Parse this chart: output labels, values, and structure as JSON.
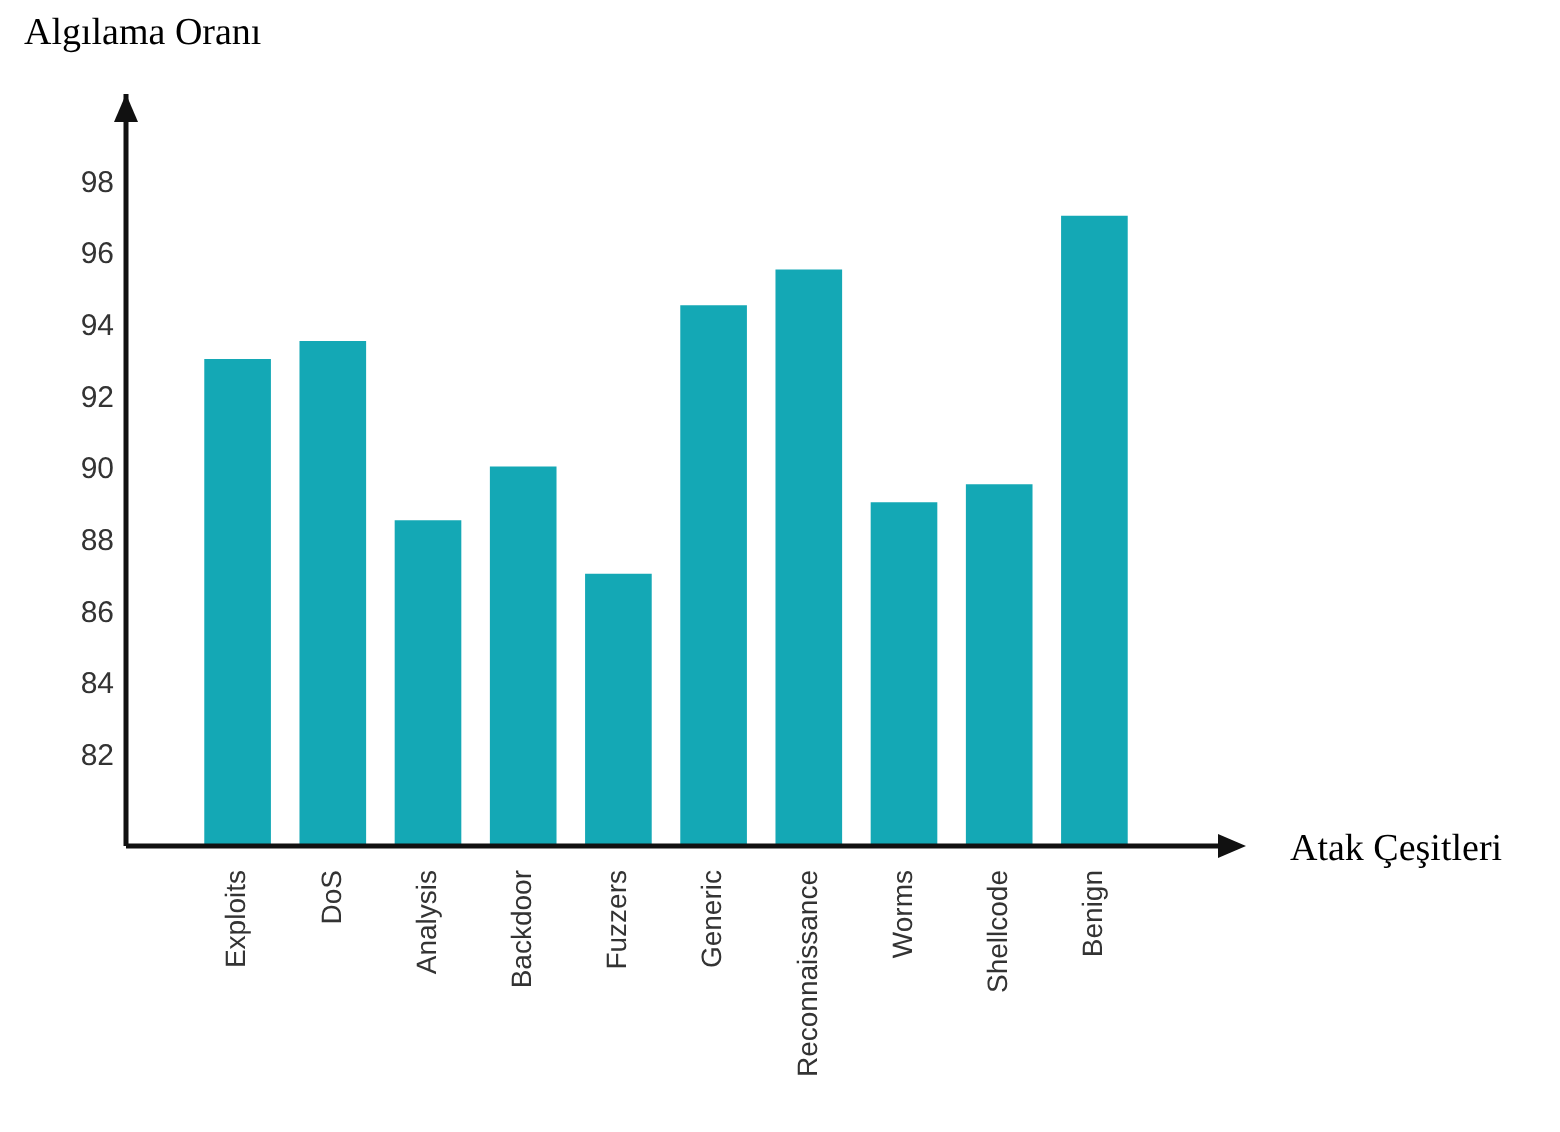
{
  "chart_data": {
    "type": "bar",
    "xlabel": "Atak Çeşitleri",
    "ylabel": "Algılama Oranı",
    "categories": [
      "Exploits",
      "DoS",
      "Analysis",
      "Backdoor",
      "Fuzzers",
      "Generic",
      "Reconnaissance",
      "Worms",
      "Shellcode",
      "Benign"
    ],
    "values": [
      93.1,
      93.6,
      88.6,
      90.1,
      87.1,
      94.6,
      95.6,
      89.1,
      89.6,
      97.1
    ],
    "color": "#14a8b5",
    "ylim": [
      79.5,
      100.5
    ],
    "yticks": [
      82,
      84,
      86,
      88,
      90,
      92,
      94,
      96,
      98
    ],
    "grid": false,
    "legend": false
  }
}
